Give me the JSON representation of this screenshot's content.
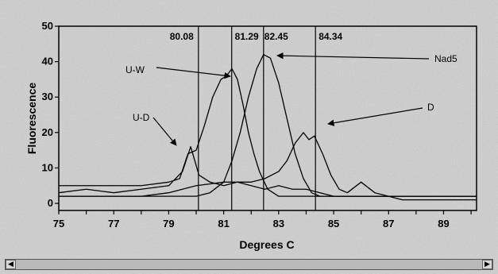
{
  "chart_data": {
    "type": "line",
    "xlabel": "Degrees C",
    "ylabel": "Fluorescence",
    "xlim": [
      75,
      90.2
    ],
    "ylim": [
      -2,
      50
    ],
    "xticks": [
      75,
      77,
      79,
      81,
      83,
      85,
      87,
      89
    ],
    "yticks": [
      0,
      10,
      20,
      30,
      40,
      50
    ],
    "grid": false,
    "vlines": [
      {
        "x": 80.08,
        "label": "80.08"
      },
      {
        "x": 81.29,
        "label": "81.29"
      },
      {
        "x": 82.45,
        "label": "82.45"
      },
      {
        "x": 84.34,
        "label": "84.34"
      }
    ],
    "annotations": [
      {
        "text": "U-W"
      },
      {
        "text": "Nad5"
      },
      {
        "text": "U-D"
      },
      {
        "text": "D"
      }
    ],
    "series": [
      {
        "name": "U-W",
        "x": [
          75,
          76,
          77,
          78,
          79,
          79.4,
          79.7,
          80.0,
          80.3,
          80.6,
          80.9,
          81.1,
          81.3,
          81.5,
          81.7,
          81.9,
          82.1,
          82.3,
          82.6,
          83.0,
          84.0,
          85.0,
          86.0,
          87.0,
          88.0,
          89.0,
          90.2
        ],
        "values": [
          5,
          5,
          5,
          5,
          6,
          7,
          14,
          15,
          22,
          30,
          35,
          36,
          38,
          35,
          28,
          20,
          14,
          9,
          4,
          2,
          2,
          2,
          2,
          2,
          2,
          2,
          2
        ]
      },
      {
        "name": "Nad5",
        "x": [
          75,
          76,
          77,
          78,
          79,
          80,
          80.5,
          81.0,
          81.3,
          81.6,
          81.9,
          82.2,
          82.45,
          82.7,
          83.0,
          83.3,
          83.6,
          83.9,
          84.2,
          84.5,
          85,
          86,
          87,
          88,
          89,
          90.2
        ],
        "values": [
          2,
          2,
          2,
          2,
          2,
          2,
          3,
          6,
          12,
          20,
          30,
          38,
          42,
          41,
          34,
          24,
          14,
          7,
          3,
          2,
          2,
          2,
          2,
          2,
          2,
          2
        ]
      },
      {
        "name": "U-D",
        "x": [
          75,
          76,
          77,
          78,
          79,
          79.5,
          79.8,
          80.1,
          80.5,
          81.0,
          81.5,
          82.0,
          82.5,
          83.0,
          83.5,
          84.0,
          85.0,
          86.0,
          87.0,
          88.0,
          89.0,
          90.2
        ],
        "values": [
          3,
          4,
          3,
          4,
          5,
          9,
          16,
          8,
          6,
          5,
          6,
          5,
          4,
          5,
          4,
          4,
          2,
          2,
          2,
          2,
          2,
          2
        ]
      },
      {
        "name": "D",
        "x": [
          75,
          76,
          77,
          78,
          79,
          80,
          81,
          82,
          82.5,
          83.0,
          83.3,
          83.6,
          83.9,
          84.1,
          84.3,
          84.6,
          84.9,
          85.2,
          85.5,
          86.0,
          86.5,
          87.0,
          87.5,
          88,
          89,
          90.2
        ],
        "values": [
          2,
          2,
          2,
          2,
          3,
          5,
          6,
          6,
          7,
          9,
          12,
          17,
          20,
          18,
          19,
          14,
          8,
          4,
          3,
          6,
          3,
          2,
          1,
          1,
          1,
          1
        ]
      }
    ]
  },
  "scrollbar": {
    "left_arrow": "◀",
    "right_arrow": "▶"
  }
}
